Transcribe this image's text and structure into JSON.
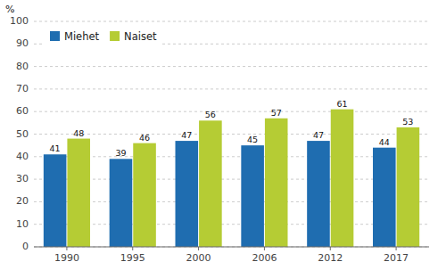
{
  "chart_data": {
    "type": "bar",
    "ylabel": "%",
    "categories": [
      "1990",
      "1995",
      "2000",
      "2006",
      "2012",
      "2017"
    ],
    "series": [
      {
        "name": "Miehet",
        "color": "#1f6db0",
        "values": [
          41,
          39,
          47,
          45,
          47,
          44
        ]
      },
      {
        "name": "Naiset",
        "color": "#b5cc34",
        "values": [
          48,
          46,
          56,
          57,
          61,
          53
        ]
      }
    ],
    "ylim": [
      0,
      100
    ],
    "yticks": [
      0,
      10,
      20,
      30,
      40,
      50,
      60,
      70,
      80,
      90,
      100
    ],
    "grid": true,
    "legend": "upper left",
    "data_labels": true
  }
}
